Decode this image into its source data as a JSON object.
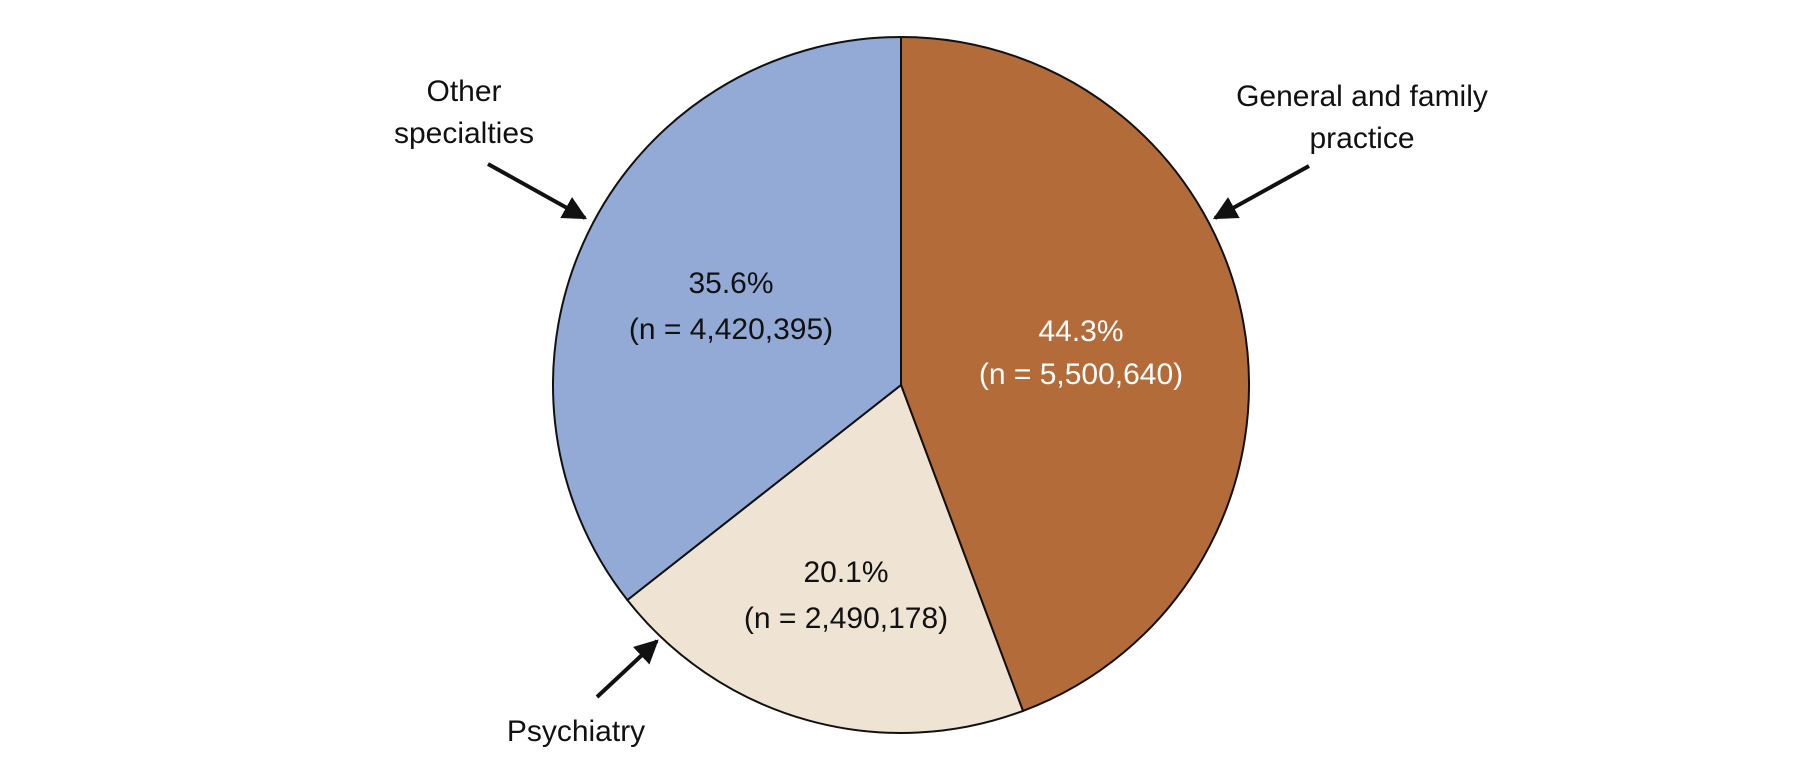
{
  "chart_data": {
    "type": "pie",
    "categories": [
      "General and family practice",
      "Psychiatry",
      "Other specialties"
    ],
    "values": [
      44.3,
      20.1,
      35.6
    ],
    "value_labels": [
      "44.3%",
      "20.1%",
      "35.6%"
    ],
    "counts": [
      5500640,
      2490178,
      4420395
    ],
    "count_labels": [
      "(n = 5,500,640)",
      "(n = 2,490,178)",
      "(n = 4,420,395)"
    ],
    "colors": [
      "#b36b3a",
      "#efe4d4",
      "#93aad6"
    ]
  }
}
